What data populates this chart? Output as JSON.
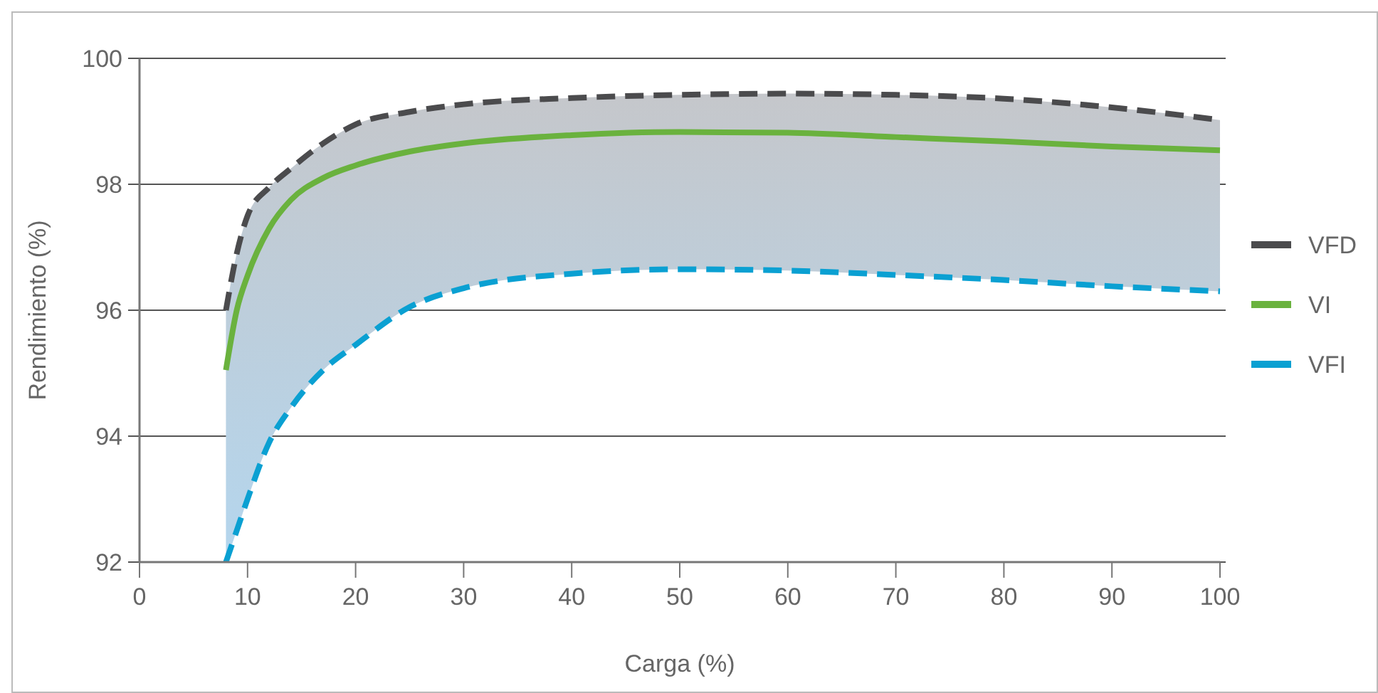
{
  "chart_data": {
    "type": "line",
    "xlabel": "Carga (%)",
    "ylabel": "Rendimiento (%)",
    "xlim": [
      0,
      100
    ],
    "xticks": [
      0,
      10,
      20,
      30,
      40,
      50,
      60,
      70,
      80,
      90,
      100
    ],
    "ylim": [
      92,
      100
    ],
    "yticks": [
      92,
      94,
      96,
      98,
      100
    ],
    "grid": "y",
    "legend": "right",
    "x": [
      8,
      9,
      10,
      12,
      14,
      17,
      20,
      25,
      30,
      40,
      50,
      60,
      70,
      80,
      90,
      100
    ],
    "series": [
      {
        "name": "VFD",
        "color": "#4b4b4d",
        "line_style": "dashed",
        "values": [
          96.0,
          96.9,
          97.5,
          97.95,
          98.25,
          98.65,
          98.95,
          99.15,
          99.27,
          99.37,
          99.42,
          99.44,
          99.42,
          99.36,
          99.22,
          99.02
        ]
      },
      {
        "name": "VI",
        "color": "#6ab23e",
        "line_style": "solid",
        "values": [
          95.05,
          96.0,
          96.55,
          97.3,
          97.75,
          98.1,
          98.3,
          98.52,
          98.65,
          98.78,
          98.83,
          98.82,
          98.75,
          98.68,
          98.6,
          98.54
        ],
        "lower": [
          92.0,
          92.5,
          93.0,
          93.9,
          94.45,
          95.05,
          95.45,
          96.05,
          96.35,
          96.58,
          96.65,
          96.63,
          96.56,
          96.48,
          96.38,
          96.3
        ],
        "upper": [
          96.0,
          96.9,
          97.5,
          97.95,
          98.25,
          98.65,
          98.95,
          99.15,
          99.27,
          99.37,
          99.42,
          99.44,
          99.42,
          99.36,
          99.22,
          99.02
        ]
      },
      {
        "name": "VFI",
        "color": "#0aa0d2",
        "line_style": "dashed",
        "values": [
          92.0,
          92.5,
          93.0,
          93.9,
          94.45,
          95.05,
          95.45,
          96.05,
          96.35,
          96.58,
          96.65,
          96.63,
          96.56,
          96.48,
          96.38,
          96.3
        ]
      }
    ]
  }
}
